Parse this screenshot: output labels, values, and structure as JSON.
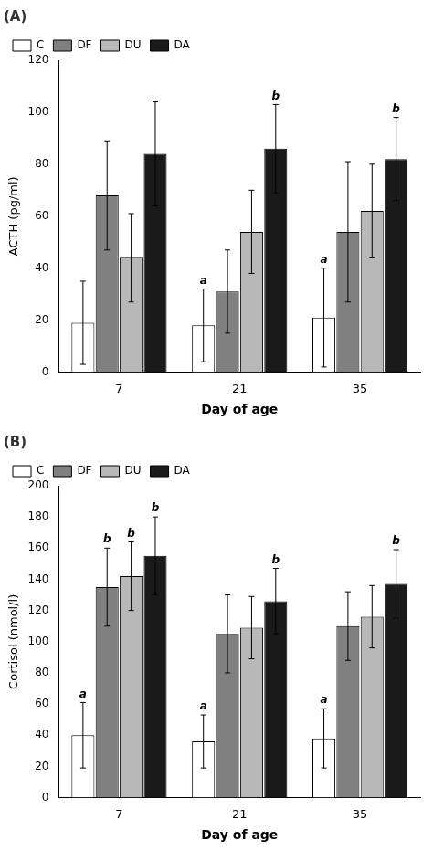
{
  "chart_data": [
    {
      "type": "bar",
      "title": "(A)",
      "xlabel": "Day of age",
      "ylabel": "ACTH (pg/ml)",
      "categories": [
        "7",
        "21",
        "35"
      ],
      "series": [
        {
          "name": "C",
          "color": "#ffffff",
          "values": [
            19,
            18,
            21
          ],
          "errors": [
            16,
            14,
            19
          ]
        },
        {
          "name": "DF",
          "color": "#808080",
          "values": [
            68,
            31,
            54
          ],
          "errors": [
            21,
            16,
            27
          ]
        },
        {
          "name": "DU",
          "color": "#b8b8b8",
          "values": [
            44,
            54,
            62
          ],
          "errors": [
            17,
            16,
            18
          ]
        },
        {
          "name": "DA",
          "color": "#1a1a1a",
          "values": [
            84,
            86,
            82
          ],
          "errors": [
            20,
            17,
            16
          ]
        }
      ],
      "ylim": [
        0,
        120
      ],
      "yticks": [
        0,
        20,
        40,
        60,
        80,
        100,
        120
      ],
      "grid": false,
      "legend": "upper left",
      "annotations": [
        {
          "text": "a",
          "category": "21",
          "series": "C"
        },
        {
          "text": "b",
          "category": "21",
          "series": "DA"
        },
        {
          "text": "a",
          "category": "35",
          "series": "C"
        },
        {
          "text": "b",
          "category": "35",
          "series": "DA"
        }
      ]
    },
    {
      "type": "bar",
      "title": "(B)",
      "xlabel": "Day of age",
      "ylabel": "Cortisol (nmol/l)",
      "categories": [
        "7",
        "21",
        "35"
      ],
      "series": [
        {
          "name": "C",
          "color": "#ffffff",
          "values": [
            40,
            36,
            38
          ],
          "errors": [
            21,
            17,
            19
          ]
        },
        {
          "name": "DF",
          "color": "#808080",
          "values": [
            135,
            105,
            110
          ],
          "errors": [
            25,
            25,
            22
          ]
        },
        {
          "name": "DU",
          "color": "#b8b8b8",
          "values": [
            142,
            109,
            116
          ],
          "errors": [
            22,
            20,
            20
          ]
        },
        {
          "name": "DA",
          "color": "#1a1a1a",
          "values": [
            155,
            126,
            137
          ],
          "errors": [
            25,
            21,
            22
          ]
        }
      ],
      "ylim": [
        0,
        200
      ],
      "yticks": [
        0,
        20,
        40,
        60,
        80,
        100,
        120,
        140,
        160,
        180,
        200
      ],
      "grid": false,
      "legend": "upper left",
      "annotations": [
        {
          "text": "a",
          "category": "7",
          "series": "C"
        },
        {
          "text": "b",
          "category": "7",
          "series": "DF"
        },
        {
          "text": "b",
          "category": "7",
          "series": "DU"
        },
        {
          "text": "b",
          "category": "7",
          "series": "DA"
        },
        {
          "text": "a",
          "category": "21",
          "series": "C"
        },
        {
          "text": "b",
          "category": "21",
          "series": "DA"
        },
        {
          "text": "a",
          "category": "35",
          "series": "C"
        },
        {
          "text": "b",
          "category": "35",
          "series": "DA"
        }
      ]
    }
  ]
}
